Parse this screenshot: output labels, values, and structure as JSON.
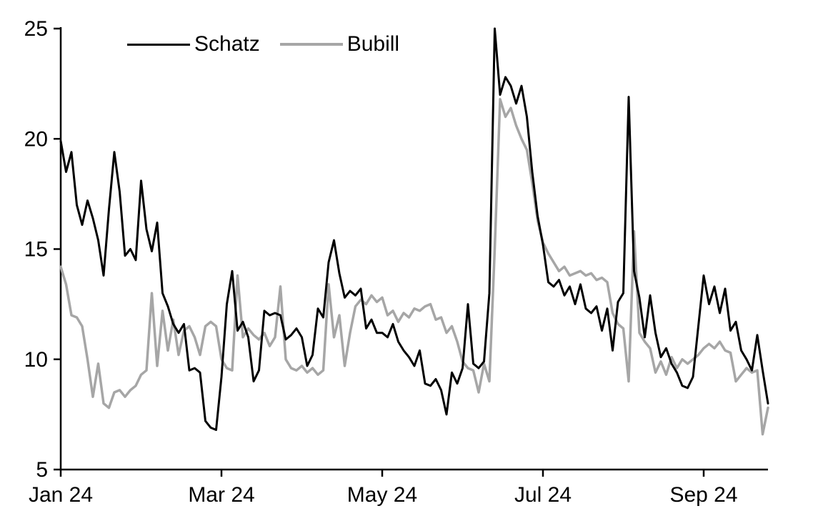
{
  "chart_data": {
    "type": "line",
    "title": "",
    "xlabel": "",
    "ylabel": "",
    "grid": false,
    "legend_position": "top-left",
    "xlim": [
      0,
      8.8
    ],
    "ylim": [
      5,
      25
    ],
    "x_start": 0,
    "x_end": 8.8,
    "x_unit": "months since Jan 2024",
    "y_ticks": [
      5,
      10,
      15,
      20,
      25
    ],
    "x_ticks": [
      {
        "pos": 0,
        "label": "Jan 24"
      },
      {
        "pos": 2,
        "label": "Mar 24"
      },
      {
        "pos": 4,
        "label": "May 24"
      },
      {
        "pos": 6,
        "label": "Jul 24"
      },
      {
        "pos": 8,
        "label": "Sep 24"
      }
    ],
    "series": [
      {
        "name": "Schatz",
        "color": "#000000",
        "width": 3,
        "values": [
          19.9,
          18.5,
          19.4,
          17.0,
          16.1,
          17.2,
          16.4,
          15.4,
          13.8,
          16.8,
          19.4,
          17.6,
          14.7,
          15.0,
          14.5,
          18.1,
          15.9,
          14.9,
          16.2,
          13.0,
          12.4,
          11.6,
          11.2,
          11.6,
          9.5,
          9.6,
          9.4,
          7.2,
          6.9,
          6.8,
          9.2,
          12.5,
          14.0,
          11.3,
          11.7,
          11.0,
          9.0,
          9.5,
          12.2,
          12.0,
          12.1,
          12.0,
          10.9,
          11.1,
          11.4,
          11.0,
          9.7,
          10.2,
          12.3,
          11.9,
          14.4,
          15.4,
          13.9,
          12.8,
          13.1,
          12.9,
          13.2,
          11.4,
          11.8,
          11.2,
          11.2,
          11.0,
          11.6,
          10.8,
          10.4,
          10.1,
          9.7,
          10.4,
          8.9,
          8.8,
          9.1,
          8.6,
          7.5,
          9.4,
          8.9,
          9.6,
          12.5,
          9.8,
          9.6,
          9.9,
          13.0,
          25.0,
          22.0,
          22.8,
          22.4,
          21.6,
          22.4,
          21.0,
          18.5,
          16.5,
          15.2,
          13.5,
          13.3,
          13.6,
          12.9,
          13.3,
          12.5,
          13.4,
          12.3,
          12.1,
          12.4,
          11.3,
          12.3,
          10.4,
          12.6,
          13.0,
          21.9,
          14.0,
          12.8,
          11.0,
          12.9,
          11.2,
          10.1,
          10.5,
          9.8,
          9.4,
          8.8,
          8.7,
          9.2,
          11.5,
          13.8,
          12.5,
          13.3,
          12.1,
          13.2,
          11.3,
          11.7,
          10.4,
          10.0,
          9.5,
          11.1,
          9.5,
          8.0
        ]
      },
      {
        "name": "Bubill",
        "color": "#a6a6a6",
        "width": 3.5,
        "values": [
          14.2,
          13.4,
          12.0,
          11.9,
          11.5,
          10.0,
          8.3,
          9.8,
          8.0,
          7.8,
          8.5,
          8.6,
          8.3,
          8.6,
          8.8,
          9.3,
          9.5,
          13.0,
          9.7,
          12.2,
          10.4,
          11.8,
          10.2,
          11.3,
          11.5,
          11.0,
          10.2,
          11.5,
          11.7,
          11.5,
          10.0,
          9.6,
          9.5,
          13.8,
          11.0,
          11.4,
          11.1,
          10.9,
          11.2,
          10.6,
          11.0,
          13.3,
          10.0,
          9.6,
          9.5,
          9.7,
          9.4,
          9.6,
          9.3,
          9.5,
          13.4,
          11.0,
          12.0,
          9.7,
          11.2,
          12.4,
          12.7,
          12.5,
          12.9,
          12.6,
          12.8,
          12.0,
          12.2,
          11.7,
          12.1,
          11.9,
          12.3,
          12.2,
          12.4,
          12.5,
          11.8,
          11.9,
          11.2,
          11.5,
          10.8,
          9.9,
          9.6,
          9.5,
          8.5,
          9.8,
          9.0,
          15.0,
          21.8,
          21.0,
          21.4,
          20.6,
          20.0,
          19.5,
          18.0,
          16.3,
          15.3,
          14.8,
          14.4,
          14.0,
          14.2,
          13.8,
          13.9,
          14.0,
          13.8,
          13.9,
          13.6,
          13.7,
          13.5,
          12.1,
          11.6,
          11.4,
          9.0,
          15.8,
          11.2,
          10.8,
          10.5,
          9.4,
          9.9,
          9.3,
          10.1,
          9.6,
          10.0,
          9.8,
          10.0,
          10.2,
          10.5,
          10.7,
          10.5,
          10.8,
          10.4,
          10.3,
          9.0,
          9.3,
          9.6,
          9.4,
          9.5,
          6.6,
          7.8
        ]
      }
    ]
  }
}
